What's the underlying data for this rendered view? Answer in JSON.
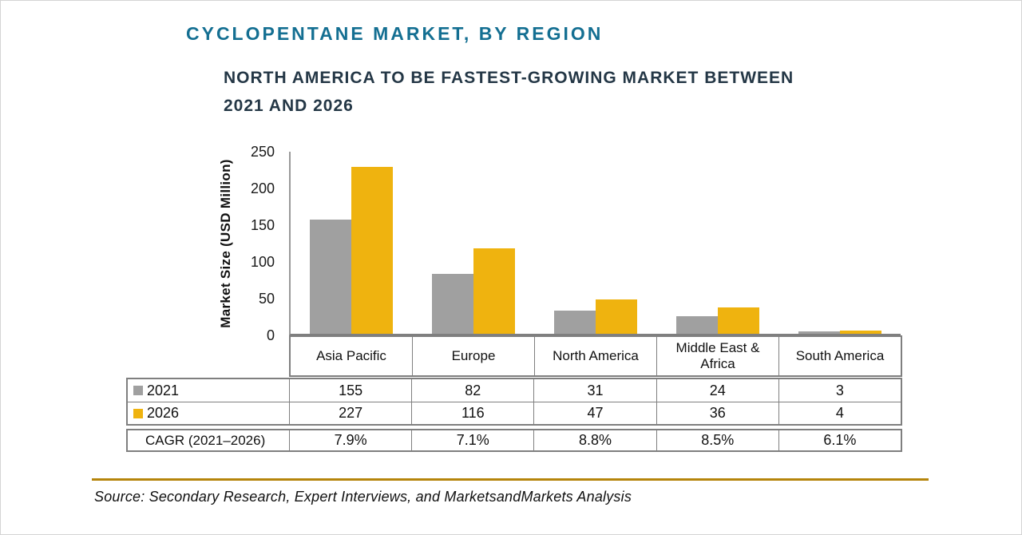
{
  "title": "CYCLOPENTANE MARKET, BY REGION",
  "subtitle_lines": {
    "line1": "NORTH AMERICA TO BE FASTEST-GROWING MARKET BETWEEN",
    "line2": "2021 AND 2026"
  },
  "colors": {
    "title_teal": "#146F92",
    "subtitle_navy": "#243746",
    "bar_2021_gray": "#A0A0A0",
    "bar_2026_gold": "#EFB30F",
    "table_border_gray": "#7F7F7F",
    "rule_gold": "#B5850B"
  },
  "chart_data": {
    "type": "bar",
    "title": "CYCLOPENTANE MARKET, BY REGION",
    "subtitle": "NORTH AMERICA TO BE FASTEST-GROWING MARKET BETWEEN 2021 AND 2026",
    "ylabel": "Market Size (USD Million)",
    "xlabel": "",
    "ylim": [
      0,
      250
    ],
    "yticks": [
      0,
      50,
      100,
      150,
      200,
      250
    ],
    "grid": false,
    "legend_position": "table-left",
    "categories": [
      "Asia Pacific",
      "Europe",
      "North America",
      "Middle East & Africa",
      "South America"
    ],
    "series": [
      {
        "name": "2021",
        "color": "#A0A0A0",
        "values": [
          155,
          82,
          31,
          24,
          3
        ]
      },
      {
        "name": "2026",
        "color": "#EFB30F",
        "values": [
          227,
          116,
          47,
          36,
          4
        ]
      }
    ],
    "cagr_row": {
      "label": "CAGR (2021–2026)",
      "values": [
        "7.9%",
        "7.1%",
        "8.8%",
        "8.5%",
        "6.1%"
      ]
    }
  },
  "source_note": "Source: Secondary Research, Expert Interviews, and MarketsandMarkets Analysis"
}
